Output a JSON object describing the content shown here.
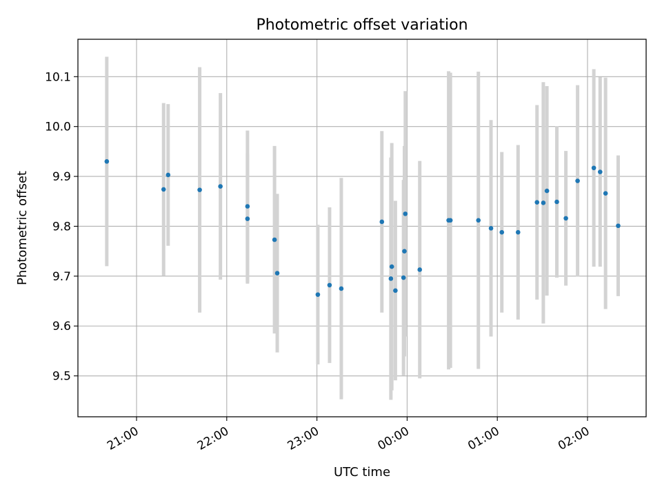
{
  "chart_data": {
    "type": "scatter",
    "title": "Photometric offset variation",
    "xlabel": "UTC time",
    "ylabel": "Photometric offset",
    "x_unit": "hours",
    "xlim": [
      20.35,
      26.65
    ],
    "ylim": [
      9.418,
      10.175
    ],
    "grid": true,
    "x_ticks": [
      {
        "value": 21,
        "label": "21:00"
      },
      {
        "value": 22,
        "label": "22:00"
      },
      {
        "value": 23,
        "label": "23:00"
      },
      {
        "value": 24,
        "label": "00:00"
      },
      {
        "value": 25,
        "label": "01:00"
      },
      {
        "value": 26,
        "label": "02:00"
      }
    ],
    "y_ticks": [
      {
        "value": 9.5,
        "label": "9.5"
      },
      {
        "value": 9.6,
        "label": "9.6"
      },
      {
        "value": 9.7,
        "label": "9.7"
      },
      {
        "value": 9.8,
        "label": "9.8"
      },
      {
        "value": 9.9,
        "label": "9.9"
      },
      {
        "value": 10.0,
        "label": "10.0"
      },
      {
        "value": 10.1,
        "label": "10.1"
      }
    ],
    "colors": {
      "point": "#1f77b4",
      "errorbar": "#d3d3d3",
      "grid": "#b0b0b0"
    },
    "points": [
      {
        "x": 20.67,
        "y": 9.93,
        "err": 0.21
      },
      {
        "x": 21.3,
        "y": 9.874,
        "err": 0.173
      },
      {
        "x": 21.35,
        "y": 9.903,
        "err": 0.142
      },
      {
        "x": 21.7,
        "y": 9.873,
        "err": 0.246
      },
      {
        "x": 21.93,
        "y": 9.88,
        "err": 0.187
      },
      {
        "x": 22.23,
        "y": 9.84,
        "err": 0.152
      },
      {
        "x": 22.23,
        "y": 9.815,
        "err": 0.13
      },
      {
        "x": 22.53,
        "y": 9.773,
        "err": 0.188
      },
      {
        "x": 22.56,
        "y": 9.706,
        "err": 0.159
      },
      {
        "x": 23.01,
        "y": 9.663,
        "err": 0.14
      },
      {
        "x": 23.14,
        "y": 9.682,
        "err": 0.156
      },
      {
        "x": 23.27,
        "y": 9.675,
        "err": 0.222
      },
      {
        "x": 23.72,
        "y": 9.809,
        "err": 0.182
      },
      {
        "x": 23.83,
        "y": 9.719,
        "err": 0.248
      },
      {
        "x": 23.82,
        "y": 9.695,
        "err": 0.243
      },
      {
        "x": 23.87,
        "y": 9.671,
        "err": 0.18
      },
      {
        "x": 23.96,
        "y": 9.697,
        "err": 0.196
      },
      {
        "x": 23.97,
        "y": 9.75,
        "err": 0.211
      },
      {
        "x": 23.98,
        "y": 9.825,
        "err": 0.246
      },
      {
        "x": 24.14,
        "y": 9.713,
        "err": 0.218
      },
      {
        "x": 24.46,
        "y": 9.812,
        "err": 0.299
      },
      {
        "x": 24.48,
        "y": 9.812,
        "err": 0.296
      },
      {
        "x": 24.79,
        "y": 9.812,
        "err": 0.298
      },
      {
        "x": 24.93,
        "y": 9.796,
        "err": 0.217
      },
      {
        "x": 25.05,
        "y": 9.788,
        "err": 0.161
      },
      {
        "x": 25.23,
        "y": 9.788,
        "err": 0.175
      },
      {
        "x": 25.44,
        "y": 9.848,
        "err": 0.195
      },
      {
        "x": 25.51,
        "y": 9.847,
        "err": 0.242
      },
      {
        "x": 25.55,
        "y": 9.871,
        "err": 0.21
      },
      {
        "x": 25.66,
        "y": 9.849,
        "err": 0.152
      },
      {
        "x": 25.76,
        "y": 9.816,
        "err": 0.135
      },
      {
        "x": 25.89,
        "y": 9.891,
        "err": 0.192
      },
      {
        "x": 26.07,
        "y": 9.917,
        "err": 0.198
      },
      {
        "x": 26.14,
        "y": 9.909,
        "err": 0.19
      },
      {
        "x": 26.2,
        "y": 9.866,
        "err": 0.232
      },
      {
        "x": 26.34,
        "y": 9.801,
        "err": 0.141
      }
    ]
  }
}
